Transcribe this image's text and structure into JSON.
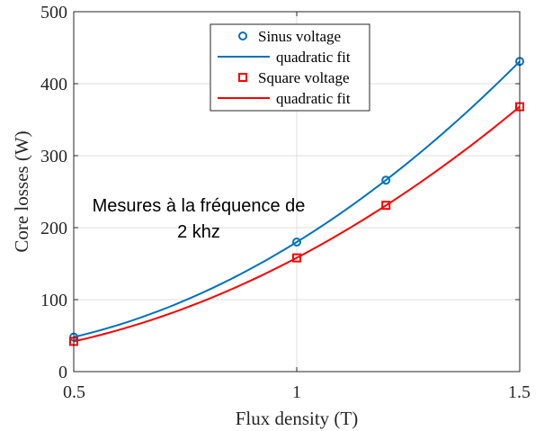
{
  "chart_data": {
    "type": "scatter",
    "xlabel": "Flux density (T)",
    "ylabel": "Core losses (W)",
    "xlim": [
      0.5,
      1.5
    ],
    "ylim": [
      0,
      500
    ],
    "xticks": [
      0.5,
      1,
      1.5
    ],
    "xtick_labels": [
      "0.5",
      "1",
      "1.5"
    ],
    "yticks": [
      0,
      100,
      200,
      300,
      400,
      500
    ],
    "ytick_labels": [
      "0",
      "100",
      "200",
      "300",
      "400",
      "500"
    ],
    "grid": true,
    "legend_position": "top-center",
    "annotation": {
      "line1": "Mesures à la fréquence de",
      "line2": "2 khz"
    },
    "series": [
      {
        "name": "Sinus voltage",
        "kind": "markers",
        "marker": "circle",
        "color": "#0072BD",
        "x": [
          0.5,
          1.0,
          1.2,
          1.5
        ],
        "y": [
          48,
          180,
          266,
          431
        ]
      },
      {
        "name": "quadratic fit",
        "kind": "line",
        "color": "#0072BD",
        "fit_of": "Sinus voltage"
      },
      {
        "name": "Square voltage",
        "kind": "markers",
        "marker": "square",
        "color": "#FF0000",
        "x": [
          0.5,
          1.0,
          1.2,
          1.5
        ],
        "y": [
          42,
          158,
          231,
          368
        ]
      },
      {
        "name": "quadratic fit",
        "kind": "line",
        "color": "#FF0000",
        "fit_of": "Square voltage"
      }
    ]
  }
}
